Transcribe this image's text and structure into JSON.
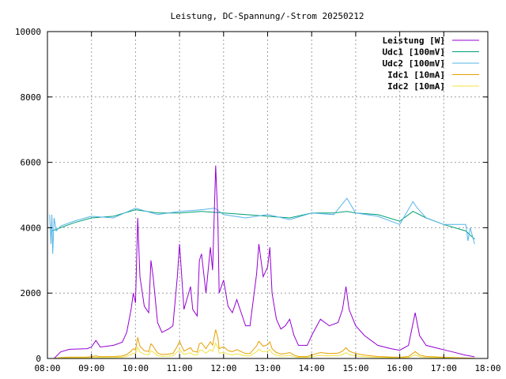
{
  "chart_data": {
    "type": "line",
    "title": "Leistung, DC-Spannung/-Strom 20250212",
    "xlabel": "",
    "ylabel": "",
    "xlim": [
      8,
      18
    ],
    "ylim": [
      0,
      10000
    ],
    "grid": true,
    "legend_position": "top-right",
    "x_ticks": [
      {
        "value": 8,
        "label": "08:00"
      },
      {
        "value": 9,
        "label": "09:00"
      },
      {
        "value": 10,
        "label": "10:00"
      },
      {
        "value": 11,
        "label": "11:00"
      },
      {
        "value": 12,
        "label": "12:00"
      },
      {
        "value": 13,
        "label": "13:00"
      },
      {
        "value": 14,
        "label": "14:00"
      },
      {
        "value": 15,
        "label": "15:00"
      },
      {
        "value": 16,
        "label": "16:00"
      },
      {
        "value": 17,
        "label": "17:00"
      },
      {
        "value": 18,
        "label": "18:00"
      }
    ],
    "y_ticks": [
      {
        "value": 0,
        "label": "0"
      },
      {
        "value": 2000,
        "label": "2000"
      },
      {
        "value": 4000,
        "label": "4000"
      },
      {
        "value": 6000,
        "label": "6000"
      },
      {
        "value": 8000,
        "label": "8000"
      },
      {
        "value": 10000,
        "label": "10000"
      }
    ],
    "series": [
      {
        "name": "Leistung [W]",
        "color": "#9400d3",
        "x": [
          8.15,
          8.3,
          8.5,
          8.9,
          9.0,
          9.1,
          9.2,
          9.5,
          9.7,
          9.8,
          9.9,
          9.95,
          10.0,
          10.05,
          10.1,
          10.2,
          10.3,
          10.35,
          10.4,
          10.5,
          10.6,
          10.75,
          10.85,
          10.95,
          11.0,
          11.1,
          11.25,
          11.3,
          11.4,
          11.45,
          11.5,
          11.6,
          11.7,
          11.75,
          11.82,
          11.87,
          11.9,
          12.0,
          12.1,
          12.2,
          12.3,
          12.5,
          12.6,
          12.75,
          12.8,
          12.9,
          13.0,
          13.05,
          13.1,
          13.2,
          13.3,
          13.4,
          13.5,
          13.6,
          13.7,
          13.9,
          14.0,
          14.2,
          14.4,
          14.6,
          14.7,
          14.78,
          14.85,
          15.0,
          15.2,
          15.5,
          15.8,
          16.0,
          16.2,
          16.35,
          16.45,
          16.6,
          16.9,
          17.2,
          17.5,
          17.7
        ],
        "y": [
          0,
          200,
          280,
          300,
          350,
          550,
          350,
          400,
          500,
          800,
          1500,
          2000,
          1700,
          4300,
          2500,
          1600,
          1400,
          3000,
          2500,
          1100,
          800,
          900,
          1000,
          2500,
          3500,
          1500,
          2200,
          1500,
          1300,
          3000,
          3200,
          2000,
          3400,
          2700,
          5900,
          4200,
          2000,
          2400,
          1600,
          1400,
          1800,
          1000,
          1000,
          2600,
          3500,
          2500,
          2800,
          3400,
          2000,
          1200,
          900,
          1000,
          1200,
          700,
          400,
          400,
          700,
          1200,
          1000,
          1100,
          1500,
          2200,
          1500,
          1000,
          700,
          400,
          300,
          250,
          400,
          1400,
          700,
          400,
          300,
          200,
          100,
          50
        ]
      },
      {
        "name": "Udc1 [100mV]",
        "color": "#009e73",
        "x": [
          8.1,
          8.3,
          8.6,
          9.0,
          9.5,
          10.0,
          10.5,
          11.0,
          11.5,
          12.0,
          12.5,
          13.0,
          13.5,
          14.0,
          14.5,
          14.8,
          15.0,
          15.5,
          16.0,
          16.3,
          16.6,
          17.0,
          17.5,
          17.7
        ],
        "y": [
          3900,
          4000,
          4150,
          4300,
          4350,
          4550,
          4450,
          4450,
          4500,
          4450,
          4400,
          4350,
          4300,
          4450,
          4450,
          4500,
          4450,
          4400,
          4200,
          4500,
          4300,
          4100,
          3900,
          3650
        ]
      },
      {
        "name": "Udc2 [100mV]",
        "color": "#56b4e9",
        "x": [
          8.05,
          8.08,
          8.1,
          8.12,
          8.15,
          8.2,
          8.3,
          8.6,
          9.0,
          9.5,
          10.0,
          10.5,
          11.0,
          11.5,
          11.8,
          12.0,
          12.5,
          13.0,
          13.5,
          14.0,
          14.5,
          14.8,
          15.0,
          15.5,
          16.0,
          16.3,
          16.4,
          16.6,
          17.0,
          17.5,
          17.55,
          17.6,
          17.7
        ],
        "y": [
          4400,
          3500,
          4400,
          3200,
          4300,
          3900,
          4050,
          4200,
          4350,
          4300,
          4600,
          4400,
          4500,
          4550,
          4600,
          4400,
          4300,
          4400,
          4250,
          4450,
          4400,
          4900,
          4450,
          4350,
          4100,
          4800,
          4600,
          4300,
          4100,
          4100,
          3600,
          4000,
          3500
        ]
      },
      {
        "name": "Idc1 [10mA]",
        "color": "#e69f00",
        "x": [
          8.15,
          8.3,
          8.5,
          8.9,
          9.0,
          9.1,
          9.2,
          9.5,
          9.7,
          9.8,
          9.9,
          9.95,
          10.0,
          10.05,
          10.1,
          10.2,
          10.3,
          10.35,
          10.4,
          10.5,
          10.6,
          10.75,
          10.85,
          10.95,
          11.0,
          11.1,
          11.25,
          11.3,
          11.4,
          11.45,
          11.5,
          11.6,
          11.7,
          11.75,
          11.82,
          11.87,
          11.9,
          12.0,
          12.1,
          12.2,
          12.3,
          12.5,
          12.6,
          12.75,
          12.8,
          12.9,
          13.0,
          13.05,
          13.1,
          13.2,
          13.3,
          13.4,
          13.5,
          13.6,
          13.7,
          13.9,
          14.0,
          14.2,
          14.4,
          14.6,
          14.7,
          14.78,
          14.85,
          15.0,
          15.2,
          15.5,
          15.8,
          16.0,
          16.2,
          16.35,
          16.45,
          16.6,
          16.9,
          17.2,
          17.5,
          17.7
        ],
        "y": [
          0,
          30,
          42,
          45,
          52,
          82,
          52,
          60,
          75,
          120,
          225,
          300,
          255,
          645,
          375,
          240,
          210,
          450,
          375,
          165,
          120,
          135,
          150,
          375,
          525,
          225,
          330,
          225,
          195,
          450,
          480,
          300,
          510,
          405,
          885,
          630,
          300,
          360,
          240,
          210,
          270,
          150,
          150,
          390,
          525,
          375,
          420,
          510,
          300,
          180,
          135,
          150,
          180,
          105,
          60,
          60,
          105,
          180,
          150,
          165,
          225,
          330,
          225,
          150,
          105,
          60,
          45,
          38,
          60,
          210,
          105,
          60,
          45,
          30,
          15,
          8
        ]
      },
      {
        "name": "Idc2 [10mA]",
        "color": "#f0e442",
        "x": [
          8.15,
          8.3,
          8.5,
          8.9,
          9.0,
          9.1,
          9.2,
          9.5,
          9.7,
          9.8,
          9.9,
          9.95,
          10.0,
          10.05,
          10.1,
          10.2,
          10.3,
          10.35,
          10.4,
          10.5,
          10.6,
          10.75,
          10.85,
          10.95,
          11.0,
          11.1,
          11.25,
          11.3,
          11.4,
          11.45,
          11.5,
          11.6,
          11.7,
          11.75,
          11.82,
          11.87,
          11.9,
          12.0,
          12.1,
          12.2,
          12.3,
          12.5,
          12.6,
          12.75,
          12.8,
          12.9,
          13.0,
          13.05,
          13.1,
          13.2,
          13.3,
          13.4,
          13.5,
          13.6,
          13.7,
          13.9,
          14.0,
          14.2,
          14.4,
          14.6,
          14.7,
          14.78,
          14.85,
          15.0,
          15.2,
          15.5,
          15.8,
          16.0,
          16.2,
          16.35,
          16.45,
          16.6,
          16.9,
          17.2,
          17.5,
          17.7
        ],
        "y": [
          0,
          16,
          22,
          24,
          28,
          44,
          28,
          32,
          40,
          64,
          120,
          160,
          136,
          344,
          200,
          128,
          112,
          240,
          200,
          88,
          64,
          72,
          80,
          200,
          280,
          120,
          176,
          120,
          104,
          240,
          256,
          160,
          272,
          216,
          472,
          336,
          160,
          192,
          128,
          112,
          144,
          80,
          80,
          208,
          280,
          200,
          224,
          272,
          160,
          96,
          72,
          80,
          96,
          56,
          32,
          32,
          56,
          96,
          80,
          88,
          120,
          176,
          120,
          80,
          56,
          32,
          24,
          20,
          32,
          112,
          56,
          32,
          24,
          16,
          8,
          4
        ]
      }
    ]
  }
}
